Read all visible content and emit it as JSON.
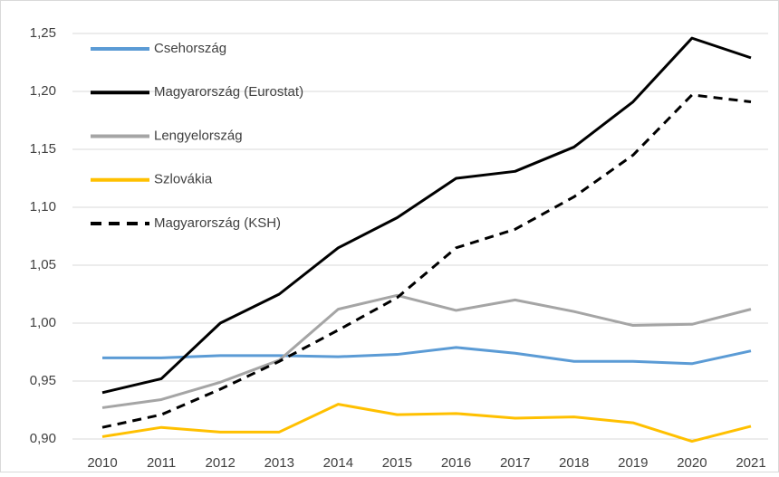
{
  "chart_data": {
    "type": "line",
    "categories": [
      "2010",
      "2011",
      "2012",
      "2013",
      "2014",
      "2015",
      "2016",
      "2017",
      "2018",
      "2019",
      "2020",
      "2021"
    ],
    "series": [
      {
        "name": "Csehország",
        "color": "#5b9bd5",
        "dash": false,
        "values": [
          0.97,
          0.97,
          0.972,
          0.972,
          0.971,
          0.973,
          0.979,
          0.974,
          0.967,
          0.967,
          0.965,
          0.976
        ]
      },
      {
        "name": "Magyarország (Eurostat)",
        "color": "#000000",
        "dash": false,
        "values": [
          0.94,
          0.952,
          1.0,
          1.025,
          1.065,
          1.091,
          1.125,
          1.131,
          1.152,
          1.191,
          1.246,
          1.229
        ]
      },
      {
        "name": "Lengyelország",
        "color": "#a5a5a5",
        "dash": false,
        "values": [
          0.927,
          0.934,
          0.949,
          0.968,
          1.012,
          1.024,
          1.011,
          1.02,
          1.01,
          0.998,
          0.999,
          1.012
        ]
      },
      {
        "name": "Szlovákia",
        "color": "#ffc000",
        "dash": false,
        "values": [
          0.902,
          0.91,
          0.906,
          0.906,
          0.93,
          0.921,
          0.922,
          0.918,
          0.919,
          0.914,
          0.898,
          0.911
        ]
      },
      {
        "name": "Magyarország (KSH)",
        "color": "#000000",
        "dash": true,
        "values": [
          0.91,
          0.921,
          0.943,
          0.967,
          0.994,
          1.022,
          1.065,
          1.081,
          1.109,
          1.145,
          1.197,
          1.191
        ]
      }
    ],
    "ylim": [
      0.9,
      1.25
    ],
    "yticks": [
      {
        "value": 0.9,
        "label": "0,90"
      },
      {
        "value": 0.95,
        "label": "0,95"
      },
      {
        "value": 1.0,
        "label": "1,00"
      },
      {
        "value": 1.05,
        "label": "1,05"
      },
      {
        "value": 1.1,
        "label": "1,10"
      },
      {
        "value": 1.15,
        "label": "1,15"
      },
      {
        "value": 1.2,
        "label": "1,20"
      },
      {
        "value": 1.25,
        "label": "1,25"
      }
    ],
    "grid": true,
    "legend": "upper-left"
  }
}
